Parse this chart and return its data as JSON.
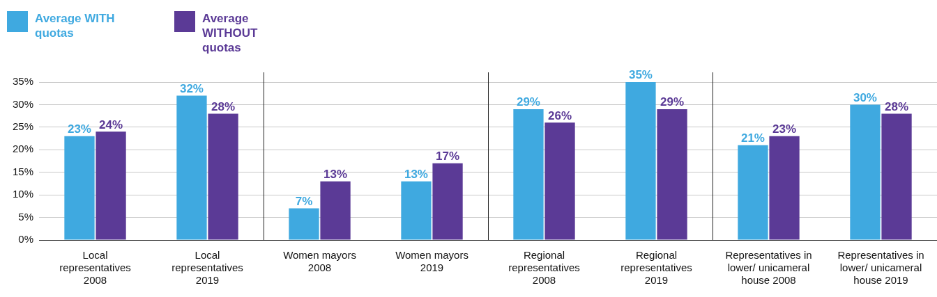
{
  "chart_data": {
    "type": "bar",
    "categories": [
      "Local representatives 2008",
      "Local representatives 2019",
      "Women mayors 2008",
      "Women mayors 2019",
      "Regional representatives 2008",
      "Regional representatives 2019",
      "Representatives in lower/ unicameral house 2008",
      "Representatives in lower/ unicameral house 2019"
    ],
    "series": [
      {
        "name": "Average WITH quotas",
        "color": "#3fa9e0",
        "values": [
          23,
          32,
          7,
          13,
          29,
          35,
          21,
          30
        ],
        "value_labels": [
          "23%",
          "32%",
          "7%",
          "13%",
          "29%",
          "35%",
          "21%",
          "30%"
        ]
      },
      {
        "name": "Average WITHOUT quotas",
        "color": "#5b3a96",
        "values": [
          24,
          28,
          13,
          17,
          26,
          29,
          23,
          28
        ],
        "value_labels": [
          "24%",
          "28%",
          "13%",
          "17%",
          "26%",
          "29%",
          "23%",
          "28%"
        ]
      }
    ],
    "ylim": [
      0,
      35
    ],
    "yticks": [
      {
        "value": 0,
        "label": "0%"
      },
      {
        "value": 5,
        "label": "5%"
      },
      {
        "value": 10,
        "label": "10%"
      },
      {
        "value": 15,
        "label": "15%"
      },
      {
        "value": 20,
        "label": "20%"
      },
      {
        "value": 25,
        "label": "25%"
      },
      {
        "value": 30,
        "label": "30%"
      },
      {
        "value": 35,
        "label": "35%"
      }
    ],
    "grid": "y",
    "legend": "top left"
  }
}
